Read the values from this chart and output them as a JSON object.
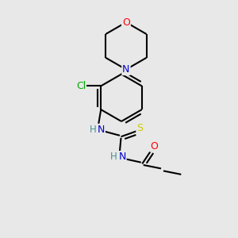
{
  "bg_color": "#e8e8e8",
  "atom_colors": {
    "O": "#ff0000",
    "N": "#0000cd",
    "S": "#cccc00",
    "Cl": "#00aa00",
    "C": "#000000",
    "H": "#4a9090"
  },
  "bond_color": "#000000",
  "bond_width": 1.5,
  "fig_size": [
    3.0,
    3.0
  ],
  "dpi": 100
}
